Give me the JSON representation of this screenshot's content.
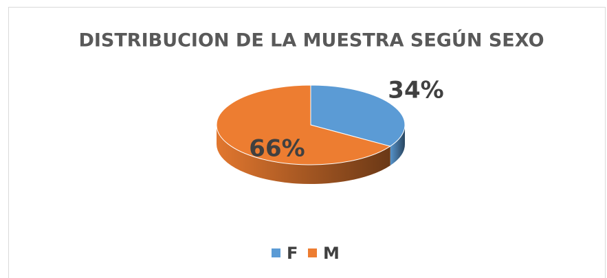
{
  "chart_data": {
    "type": "pie",
    "title": "DISTRIBUCION DE LA MUESTRA SEGÚN SEXO",
    "categories": [
      "F",
      "M"
    ],
    "values": [
      34,
      66
    ],
    "value_labels": [
      "34%",
      "66%"
    ],
    "colors": [
      "#5b9bd5",
      "#ed7d31"
    ],
    "legend": "bottom"
  }
}
